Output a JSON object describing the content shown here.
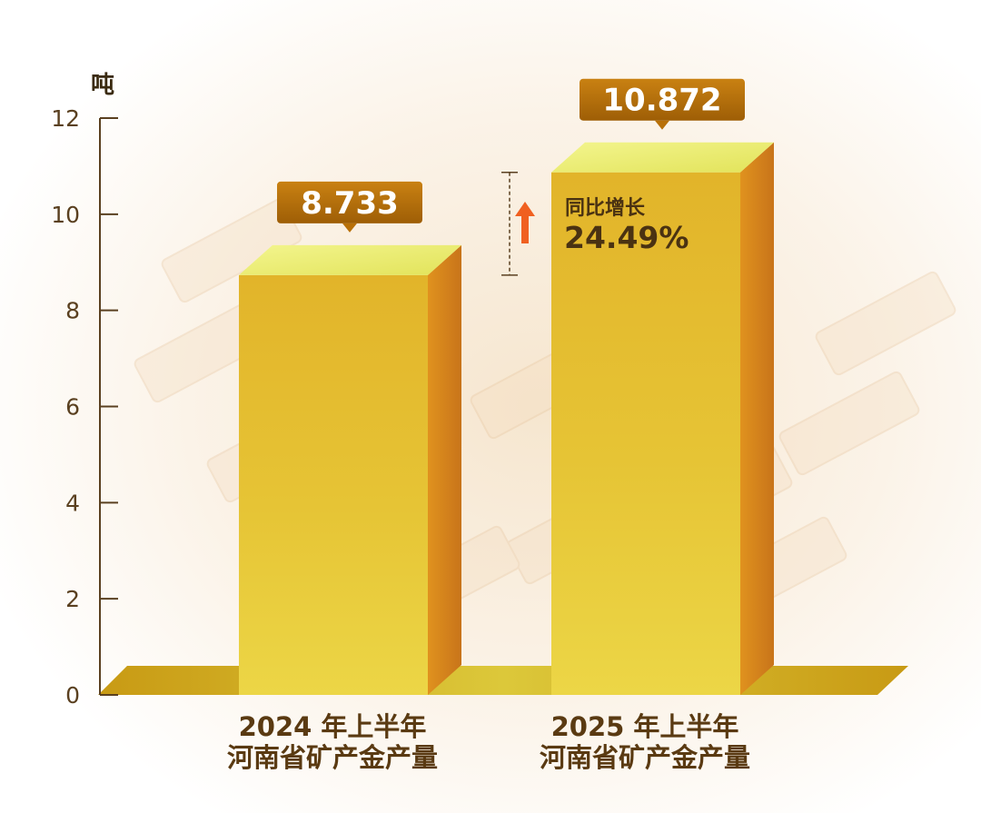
{
  "chart_data": {
    "type": "bar",
    "ylabel": "吨",
    "yticks": [
      "0",
      "2",
      "4",
      "6",
      "8",
      "10",
      "12"
    ],
    "ylim": [
      0,
      12
    ],
    "categories": [
      {
        "line1": "2024 年上半年",
        "line2": "河南省矿产金产量"
      },
      {
        "line1": "2025 年上半年",
        "line2": "河南省矿产金产量"
      }
    ],
    "values": [
      8.733,
      10.872
    ],
    "value_labels": [
      "8.733",
      "10.872"
    ],
    "growth": {
      "label": "同比增长",
      "value": "24.49%"
    },
    "colors": {
      "bar_front": "#e8c830",
      "bar_side": "#d98a1a",
      "bar_top": "#eef07a",
      "callout": "#b87008",
      "arrow": "#f06020",
      "axis": "#5a4020"
    }
  }
}
